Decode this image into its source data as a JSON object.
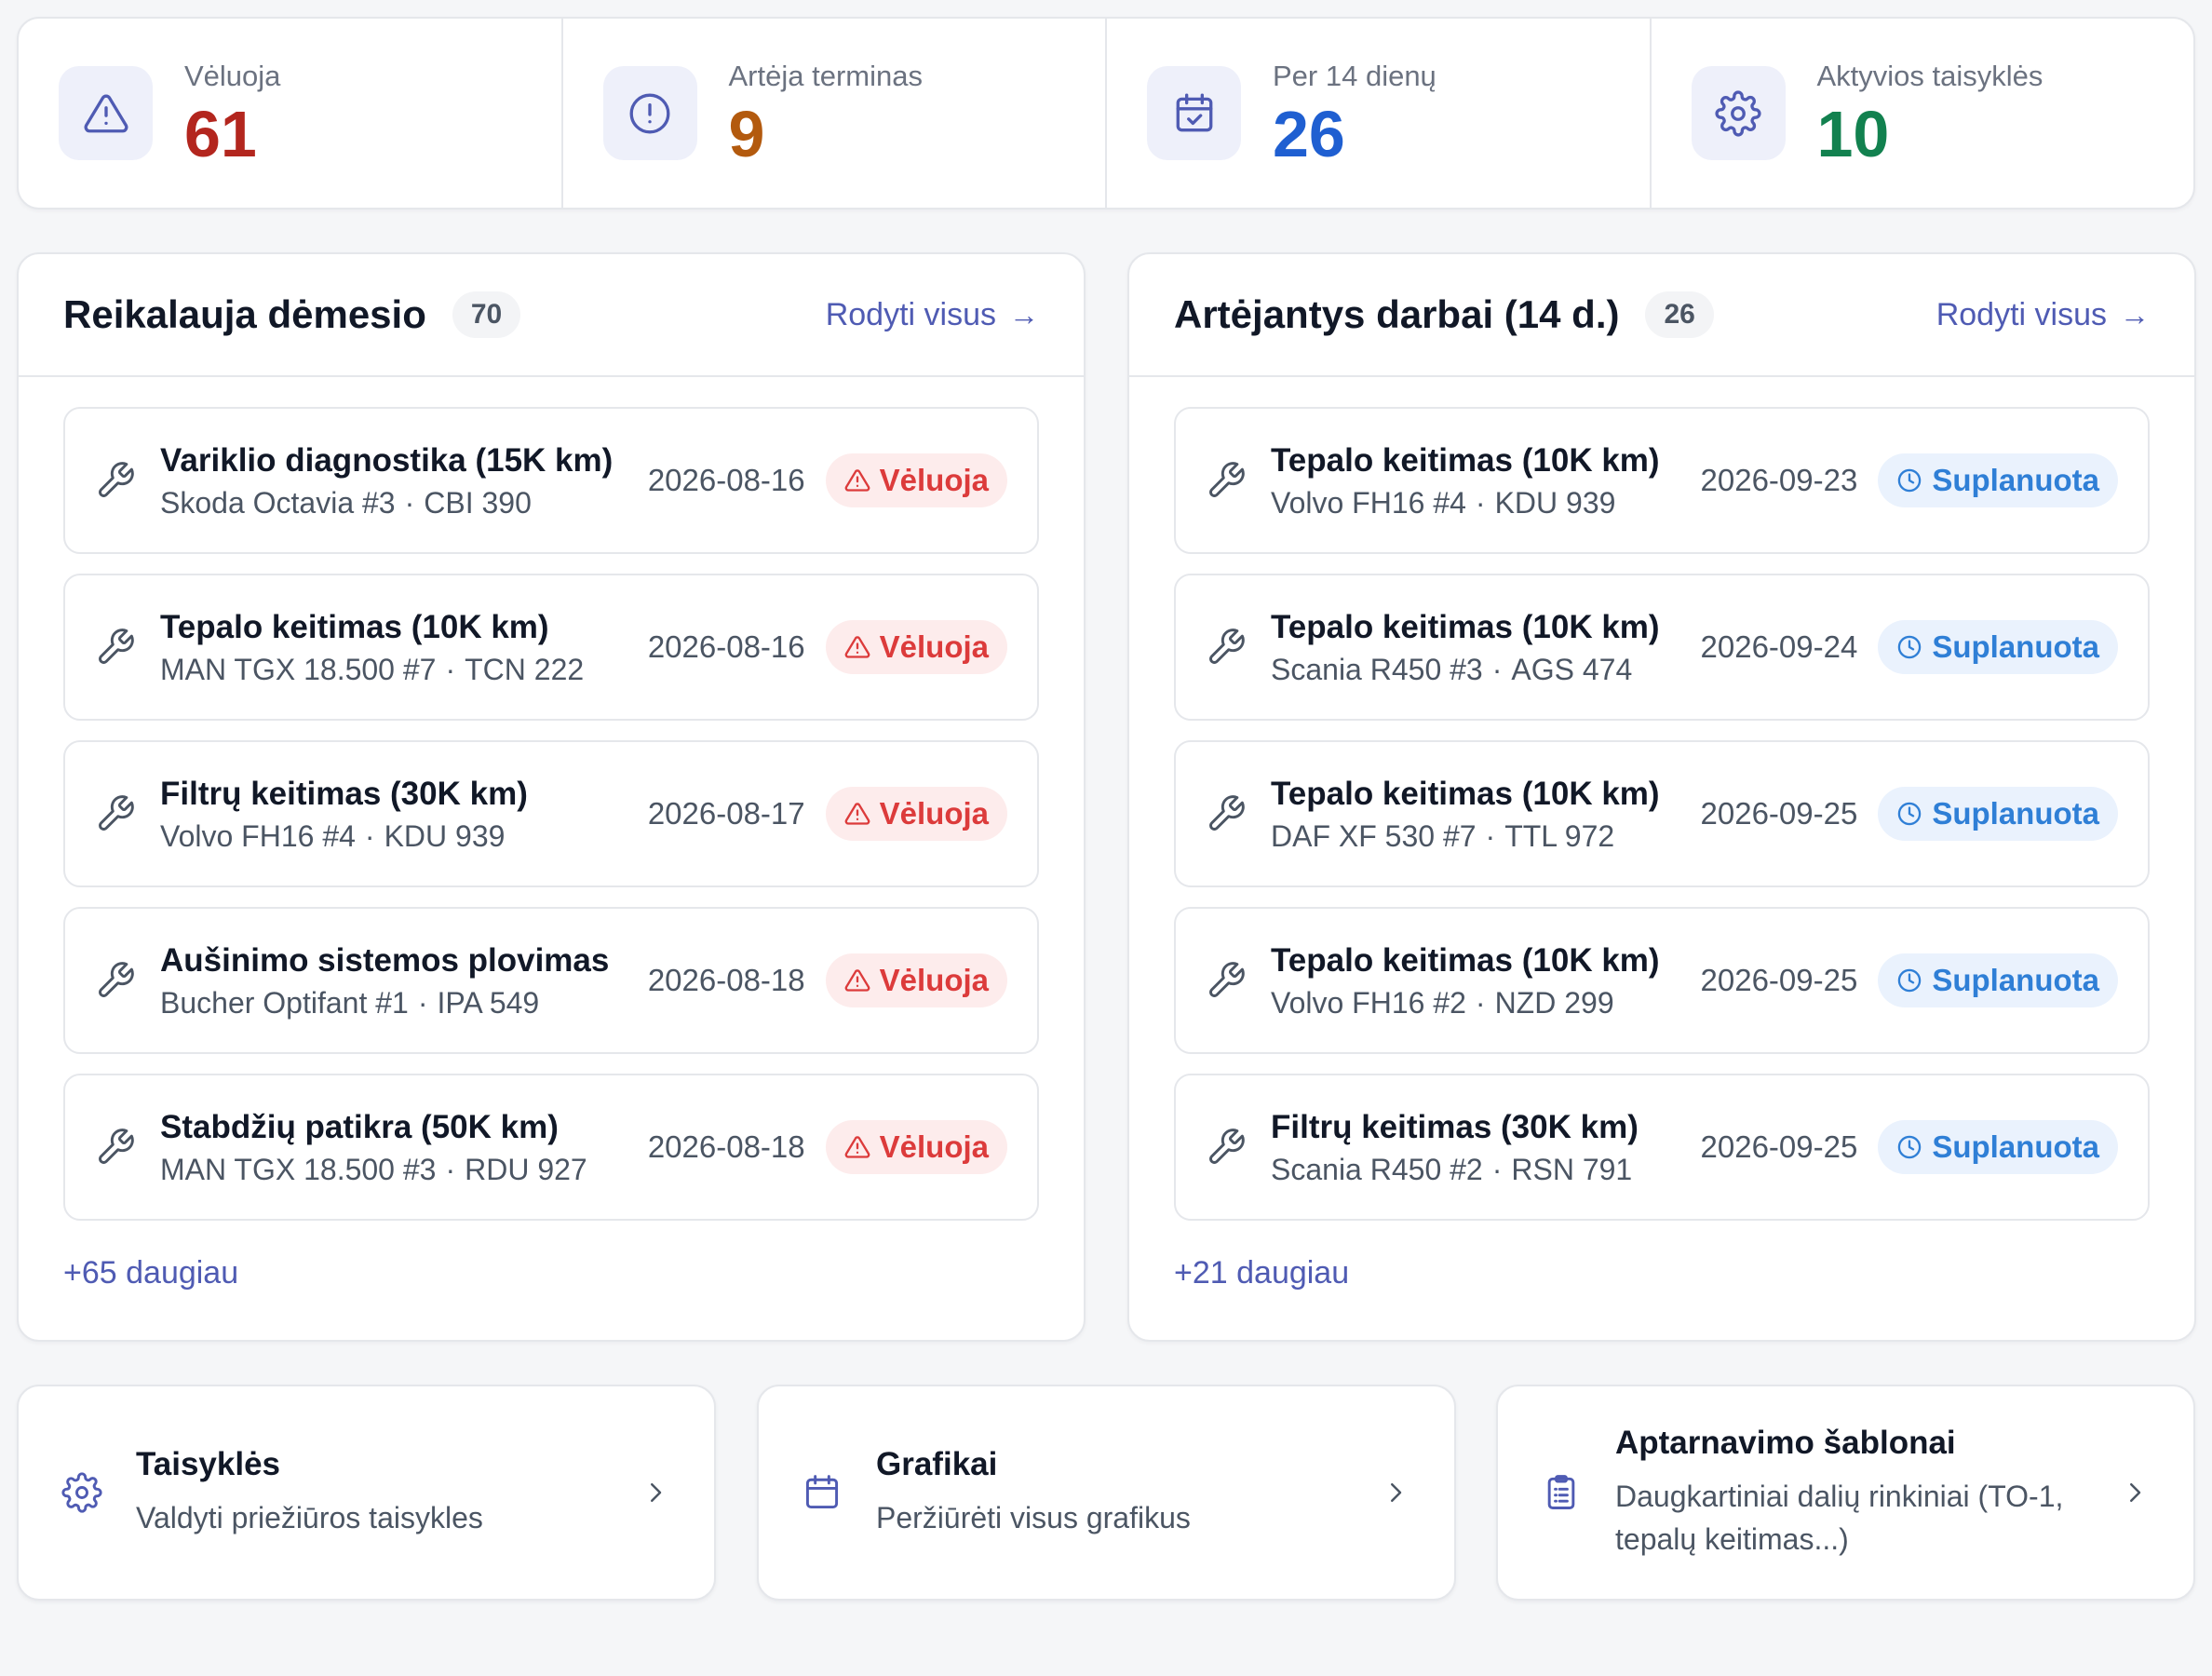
{
  "stats": [
    {
      "label": "Vėluoja",
      "value": "61",
      "color": "#b3261e",
      "icon": "warning-triangle-icon"
    },
    {
      "label": "Artėja terminas",
      "value": "9",
      "color": "#b35a0e",
      "icon": "alert-circle-icon"
    },
    {
      "label": "Per 14 dienų",
      "value": "26",
      "color": "#1f5fd1",
      "icon": "calendar-check-icon"
    },
    {
      "label": "Aktyvios taisyklės",
      "value": "10",
      "color": "#12814f",
      "icon": "gear-icon"
    }
  ],
  "attention": {
    "title": "Reikalauja dėmesio",
    "count": "70",
    "view_all": "Rodyti visus",
    "more": "+65 daugiau",
    "items": [
      {
        "title": "Variklio diagnostika (15K km)",
        "vehicle": "Skoda Octavia #3",
        "plate": "CBI 390",
        "date": "2026-08-16",
        "status": "Vėluoja"
      },
      {
        "title": "Tepalo keitimas (10K km)",
        "vehicle": "MAN TGX 18.500 #7",
        "plate": "TCN 222",
        "date": "2026-08-16",
        "status": "Vėluoja"
      },
      {
        "title": "Filtrų keitimas (30K km)",
        "vehicle": "Volvo FH16 #4",
        "plate": "KDU 939",
        "date": "2026-08-17",
        "status": "Vėluoja"
      },
      {
        "title": "Aušinimo sistemos plovimas",
        "vehicle": "Bucher Optifant #1",
        "plate": "IPA 549",
        "date": "2026-08-18",
        "status": "Vėluoja"
      },
      {
        "title": "Stabdžių patikra (50K km)",
        "vehicle": "MAN TGX 18.500 #3",
        "plate": "RDU 927",
        "date": "2026-08-18",
        "status": "Vėluoja"
      }
    ]
  },
  "upcoming": {
    "title": "Artėjantys darbai (14 d.)",
    "count": "26",
    "view_all": "Rodyti visus",
    "more": "+21 daugiau",
    "items": [
      {
        "title": "Tepalo keitimas (10K km)",
        "vehicle": "Volvo FH16 #4",
        "plate": "KDU 939",
        "date": "2026-09-23",
        "status": "Suplanuota"
      },
      {
        "title": "Tepalo keitimas (10K km)",
        "vehicle": "Scania R450 #3",
        "plate": "AGS 474",
        "date": "2026-09-24",
        "status": "Suplanuota"
      },
      {
        "title": "Tepalo keitimas (10K km)",
        "vehicle": "DAF XF 530 #7",
        "plate": "TTL 972",
        "date": "2026-09-25",
        "status": "Suplanuota"
      },
      {
        "title": "Tepalo keitimas (10K km)",
        "vehicle": "Volvo FH16 #2",
        "plate": "NZD 299",
        "date": "2026-09-25",
        "status": "Suplanuota"
      },
      {
        "title": "Filtrų keitimas (30K km)",
        "vehicle": "Scania R450 #2",
        "plate": "RSN 791",
        "date": "2026-09-25",
        "status": "Suplanuota"
      }
    ]
  },
  "quick_links": [
    {
      "title": "Taisyklės",
      "desc": "Valdyti priežiūros taisykles",
      "icon": "gear-icon"
    },
    {
      "title": "Grafikai",
      "desc": "Peržiūrėti visus grafikus",
      "icon": "calendar-icon"
    },
    {
      "title": "Aptarnavimo šablonai",
      "desc": "Daugkartiniai dalių rinkiniai (TO-1, tepalų keitimas...)",
      "icon": "clipboard-list-icon"
    }
  ],
  "colors": {
    "accent": "#4f5bb3",
    "late": "#dc3b3b",
    "planned": "#2f7fd6"
  }
}
